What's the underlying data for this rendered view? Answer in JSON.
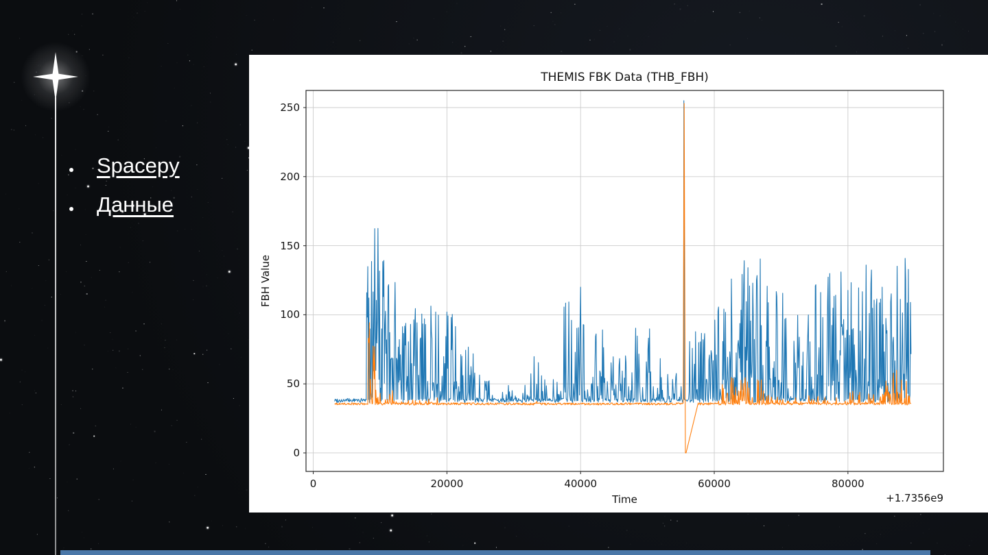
{
  "slide": {
    "background_color": "#0d1014",
    "accent_bar_color": "#4a77a8",
    "bullet_links": [
      {
        "label": "Spacepy"
      },
      {
        "label": "Данные"
      }
    ]
  },
  "chart_data": {
    "type": "line",
    "title": "THEMIS FBK Data (THB_FBH)",
    "xlabel": "Time",
    "ylabel": "FBH Value",
    "x_offset_text": "+1.7356e9",
    "xlim": [
      -1085,
      94285
    ],
    "ylim": [
      -13.4,
      262.4
    ],
    "xticks": [
      0,
      20000,
      40000,
      60000,
      80000
    ],
    "yticks": [
      0,
      50,
      100,
      150,
      200,
      250
    ],
    "grid": true,
    "legend": false,
    "seed": 99,
    "_bursts_format": "[x_start, x_end, peak_value, spike_density]",
    "series": [
      {
        "name": "blue-series",
        "color": "#1f77b4",
        "x_start": 3200,
        "x_end": 89500,
        "step": 80,
        "baseline": 38,
        "noise": 1.5,
        "bursts": [
          [
            8000,
            9900,
            164,
            0.92
          ],
          [
            9900,
            11500,
            142,
            0.85
          ],
          [
            11500,
            13200,
            125,
            0.8
          ],
          [
            13200,
            16000,
            106,
            0.75
          ],
          [
            16000,
            18600,
            108,
            0.75
          ],
          [
            18600,
            21500,
            105,
            0.7
          ],
          [
            21500,
            24000,
            82,
            0.55
          ],
          [
            24000,
            26500,
            58,
            0.45
          ],
          [
            26500,
            32500,
            50,
            0.3
          ],
          [
            32500,
            34500,
            76,
            0.45
          ],
          [
            34500,
            37500,
            56,
            0.35
          ],
          [
            37500,
            39000,
            112,
            0.6
          ],
          [
            39000,
            40500,
            133,
            0.7
          ],
          [
            40500,
            43500,
            90,
            0.55
          ],
          [
            43500,
            46500,
            72,
            0.5
          ],
          [
            46500,
            49500,
            95,
            0.55
          ],
          [
            49500,
            52500,
            95,
            0.55
          ],
          [
            52500,
            55200,
            60,
            0.35
          ],
          [
            56200,
            60000,
            88,
            0.55
          ],
          [
            60000,
            63500,
            130,
            0.8
          ],
          [
            63500,
            66200,
            150,
            0.85
          ],
          [
            66200,
            68200,
            162,
            0.85
          ],
          [
            68200,
            70800,
            120,
            0.7
          ],
          [
            70800,
            73500,
            105,
            0.65
          ],
          [
            73500,
            76500,
            122,
            0.7
          ],
          [
            76500,
            79500,
            136,
            0.75
          ],
          [
            79500,
            82500,
            126,
            0.7
          ],
          [
            82500,
            85500,
            138,
            0.75
          ],
          [
            85500,
            87200,
            120,
            0.65
          ],
          [
            87200,
            89500,
            153,
            0.8
          ]
        ],
        "events": [
          [
            [
              55400,
              40
            ],
            [
              55450,
              255
            ],
            [
              55500,
              40
            ]
          ]
        ]
      },
      {
        "name": "orange-series",
        "color": "#ff7f0e",
        "x_start": 3200,
        "x_end": 89500,
        "step": 80,
        "baseline": 35.5,
        "noise": 0.8,
        "bursts": [
          [
            8200,
            8700,
            95,
            0.85
          ],
          [
            8700,
            9300,
            78,
            0.6
          ],
          [
            9300,
            12500,
            48,
            0.45
          ],
          [
            13000,
            20000,
            40,
            0.2
          ],
          [
            33000,
            34500,
            40,
            0.15
          ],
          [
            60500,
            67500,
            55,
            0.5
          ],
          [
            67500,
            80000,
            42,
            0.3
          ],
          [
            80000,
            85500,
            46,
            0.35
          ],
          [
            85500,
            89200,
            62,
            0.55
          ]
        ],
        "events": [
          [
            [
              55350,
              36
            ],
            [
              55500,
              253
            ],
            [
              55680,
              0
            ],
            [
              55780,
              0
            ],
            [
              57600,
              35.5
            ]
          ]
        ]
      }
    ]
  }
}
